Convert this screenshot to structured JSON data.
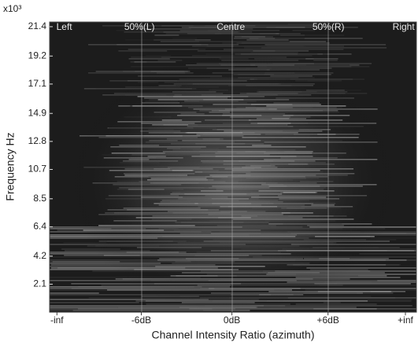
{
  "chart_data": {
    "type": "heatmap",
    "y_label": "Frequency Hz",
    "x_label": "Channel Intensity Ratio (azimuth)",
    "y_multiplier": "x10³",
    "ylim": [
      0,
      21.75
    ],
    "yticks": [
      2.1,
      4.2,
      6.4,
      8.5,
      10.7,
      12.8,
      14.9,
      17.1,
      19.2,
      21.4
    ],
    "x_tick_labels": [
      "-inf",
      "-6dB",
      "0dB",
      "+6dB",
      "+inf"
    ],
    "top_labels": [
      "Left",
      "50%(L)",
      "Centre",
      "50%(R)",
      "Right"
    ]
  }
}
